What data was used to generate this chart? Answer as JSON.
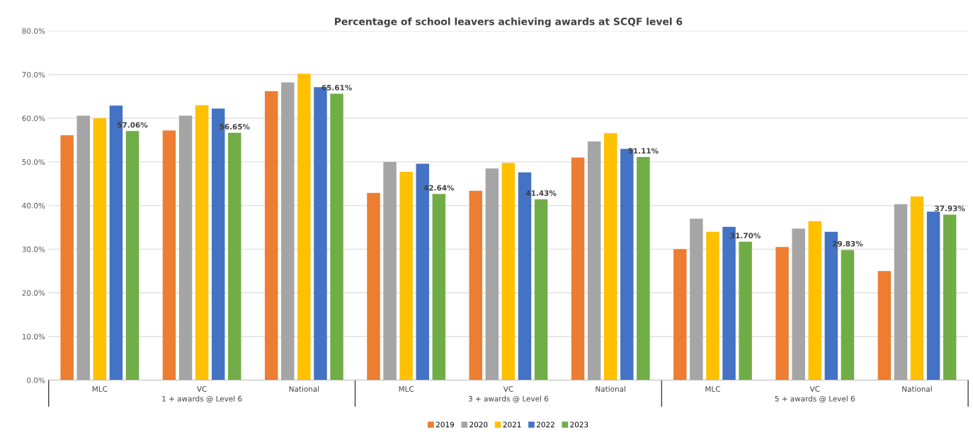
{
  "chart_data": {
    "type": "bar",
    "title": "Percentage of school leavers achieving awards at SCQF level 6",
    "categories": [
      "MLC",
      "VC",
      "National",
      "MLC",
      "VC",
      "National",
      "MLC",
      "VC",
      "National"
    ],
    "annotations": [
      "1 + awards @ Level 6",
      "3 + awards @ Level 6",
      "5 + awards @ Level 6"
    ],
    "series": [
      {
        "name": "2019",
        "color": "#ed7d31",
        "values": [
          56.1,
          57.2,
          66.2,
          42.9,
          43.4,
          51.0,
          30.0,
          30.5,
          25.0
        ]
      },
      {
        "name": "2020",
        "color": "#a5a5a5",
        "values": [
          60.6,
          60.6,
          68.2,
          50.0,
          48.5,
          54.7,
          37.0,
          34.7,
          40.3
        ]
      },
      {
        "name": "2021",
        "color": "#ffc000",
        "values": [
          60.0,
          63.0,
          70.2,
          47.7,
          49.8,
          56.6,
          34.0,
          36.4,
          42.1
        ]
      },
      {
        "name": "2022",
        "color": "#4472c4",
        "values": [
          62.9,
          62.2,
          67.1,
          49.6,
          47.6,
          53.0,
          35.1,
          34.0,
          38.6
        ]
      },
      {
        "name": "2023",
        "color": "#70ad47",
        "values": [
          57.06,
          56.65,
          65.61,
          42.64,
          41.43,
          51.11,
          31.7,
          29.83,
          37.93
        ],
        "value_labels": [
          "57.06%",
          "56.65%",
          "65.61%",
          "42.64%",
          "41.43%",
          "51.11%",
          "31.70%",
          "29.83%",
          "37.93%"
        ]
      }
    ],
    "ylim": [
      0,
      80
    ],
    "yticks": [
      {
        "value": 0,
        "label": "0.0%"
      },
      {
        "value": 10,
        "label": "10.0%"
      },
      {
        "value": 20,
        "label": "20.0%"
      },
      {
        "value": 30,
        "label": "30.0%"
      },
      {
        "value": 40,
        "label": "40.0%"
      },
      {
        "value": 50,
        "label": "50.0%"
      },
      {
        "value": 60,
        "label": "60.0%"
      },
      {
        "value": 70,
        "label": "70.0%"
      },
      {
        "value": 80,
        "label": "80.0%"
      }
    ],
    "grid": "y",
    "legend": "bottom"
  }
}
